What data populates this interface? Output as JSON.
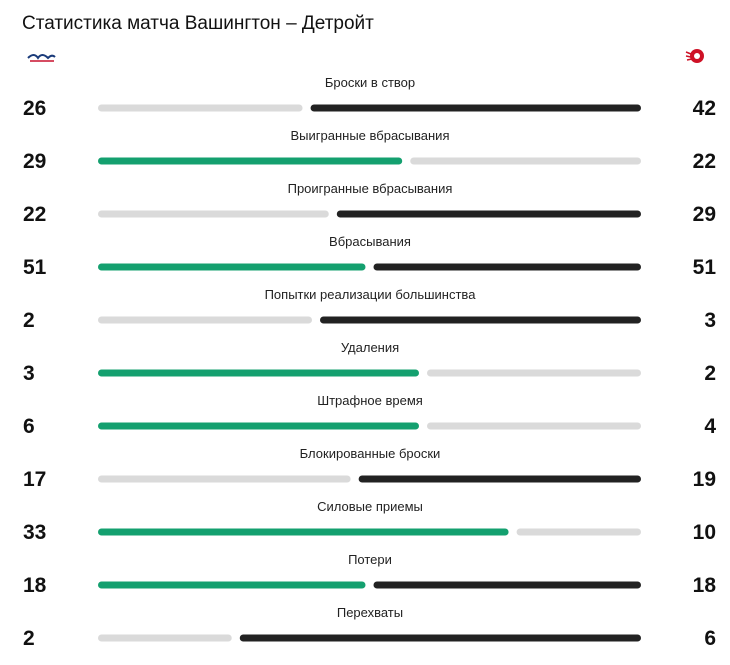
{
  "chart_data": {
    "type": "comparison",
    "title": "Статистика матча Вашингтон – Детройт",
    "categories": [
      "Броски в створ",
      "Выигранные вбрасывания",
      "Проигранные вбрасывания",
      "Вбрасывания",
      "Попытки реализации большинства",
      "Удаления",
      "Штрафное время",
      "Блокированные броски",
      "Силовые приемы",
      "Потери",
      "Перехваты"
    ],
    "series": [
      {
        "color": "#14a06f",
        "values": [
          26,
          29,
          22,
          51,
          2,
          3,
          6,
          17,
          33,
          18,
          2
        ]
      },
      {
        "color": "#222222",
        "values": [
          42,
          22,
          29,
          51,
          3,
          2,
          4,
          19,
          10,
          18,
          6
        ]
      }
    ],
    "base_color": "#dadada"
  }
}
